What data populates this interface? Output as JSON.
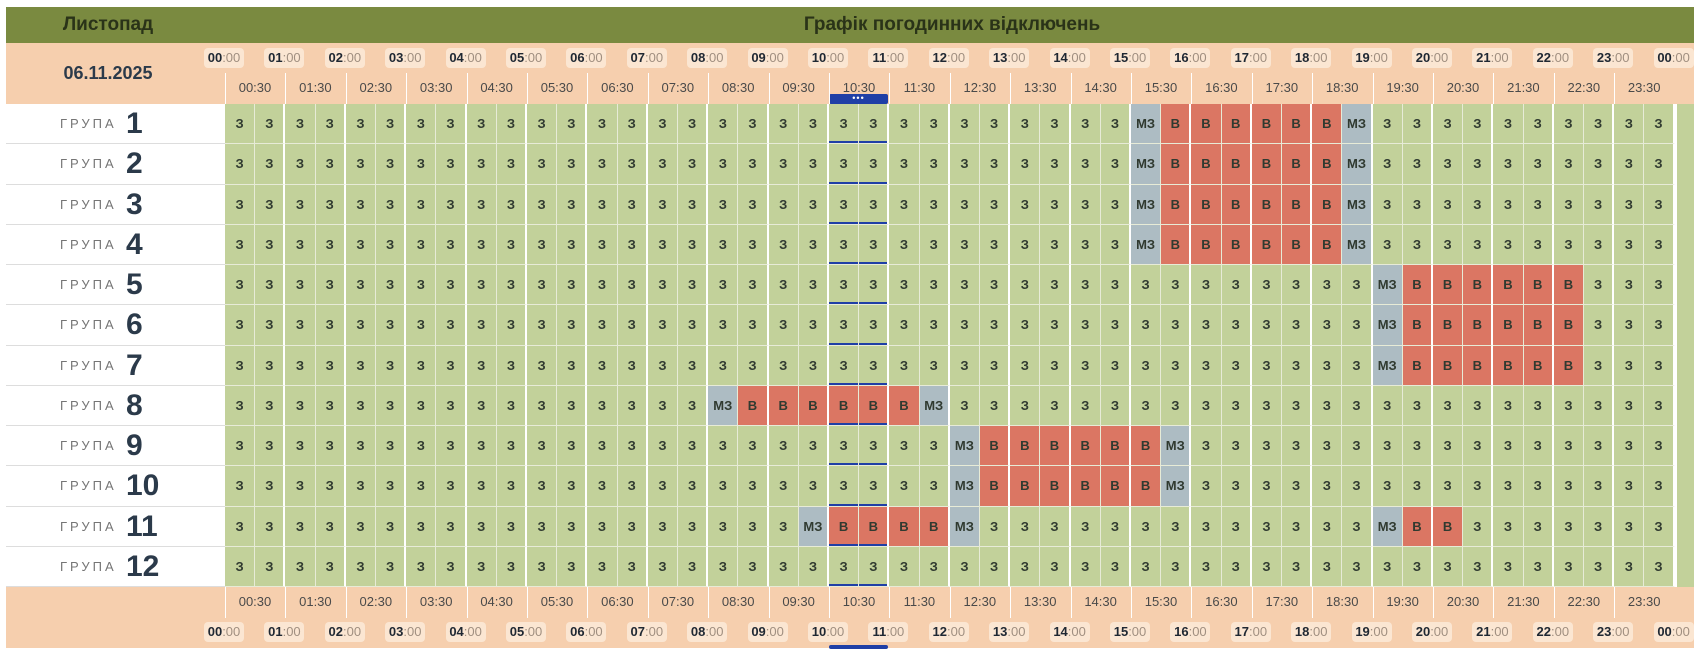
{
  "title": {
    "month": "Листопад",
    "text": "Графік погодинних відключень"
  },
  "date": "06.11.2025",
  "group_word": "ГРУПА",
  "now_marker": "•••",
  "hours": [
    "00",
    "01",
    "02",
    "03",
    "04",
    "05",
    "06",
    "07",
    "08",
    "09",
    "10",
    "11",
    "12",
    "13",
    "14",
    "15",
    "16",
    "17",
    "18",
    "19",
    "20",
    "21",
    "22",
    "23",
    "00"
  ],
  "hour_suffix": ":00",
  "half_hours": [
    "00:30",
    "01:30",
    "02:30",
    "03:30",
    "04:30",
    "05:30",
    "06:30",
    "07:30",
    "08:30",
    "09:30",
    "10:30",
    "11:30",
    "12:30",
    "13:30",
    "14:30",
    "15:30",
    "16:30",
    "17:30",
    "18:30",
    "19:30",
    "20:30",
    "21:30",
    "22:30",
    "23:30"
  ],
  "legend": {
    "on": "З",
    "off": "В",
    "maybe": "МЗ"
  },
  "current_slots": [
    20,
    21
  ],
  "colors": {
    "on": "#c2d19a",
    "off": "#db7663",
    "maybe": "#adbcc3",
    "header": "#f6cfae",
    "title_bar": "#7a8a40",
    "now": "#1f3fa6"
  },
  "groups": [
    {
      "number": "1",
      "outages": [
        [
          31,
          36
        ]
      ],
      "maybe": [
        30,
        37
      ]
    },
    {
      "number": "2",
      "outages": [
        [
          31,
          36
        ]
      ],
      "maybe": [
        30,
        37
      ]
    },
    {
      "number": "3",
      "outages": [
        [
          31,
          36
        ]
      ],
      "maybe": [
        30,
        37
      ]
    },
    {
      "number": "4",
      "outages": [
        [
          31,
          36
        ]
      ],
      "maybe": [
        30,
        37
      ]
    },
    {
      "number": "5",
      "outages": [
        [
          39,
          44
        ]
      ],
      "maybe": [
        38
      ]
    },
    {
      "number": "6",
      "outages": [
        [
          39,
          44
        ]
      ],
      "maybe": [
        38
      ]
    },
    {
      "number": "7",
      "outages": [
        [
          39,
          44
        ]
      ],
      "maybe": [
        38
      ]
    },
    {
      "number": "8",
      "outages": [
        [
          17,
          22
        ]
      ],
      "maybe": [
        16,
        23
      ]
    },
    {
      "number": "9",
      "outages": [
        [
          25,
          30
        ]
      ],
      "maybe": [
        24,
        31
      ]
    },
    {
      "number": "10",
      "outages": [
        [
          25,
          30
        ]
      ],
      "maybe": [
        24,
        31
      ]
    },
    {
      "number": "11",
      "outages": [
        [
          20,
          23
        ],
        [
          39,
          40
        ]
      ],
      "maybe": [
        19,
        24,
        38
      ]
    },
    {
      "number": "12",
      "outages": [],
      "maybe": []
    }
  ]
}
